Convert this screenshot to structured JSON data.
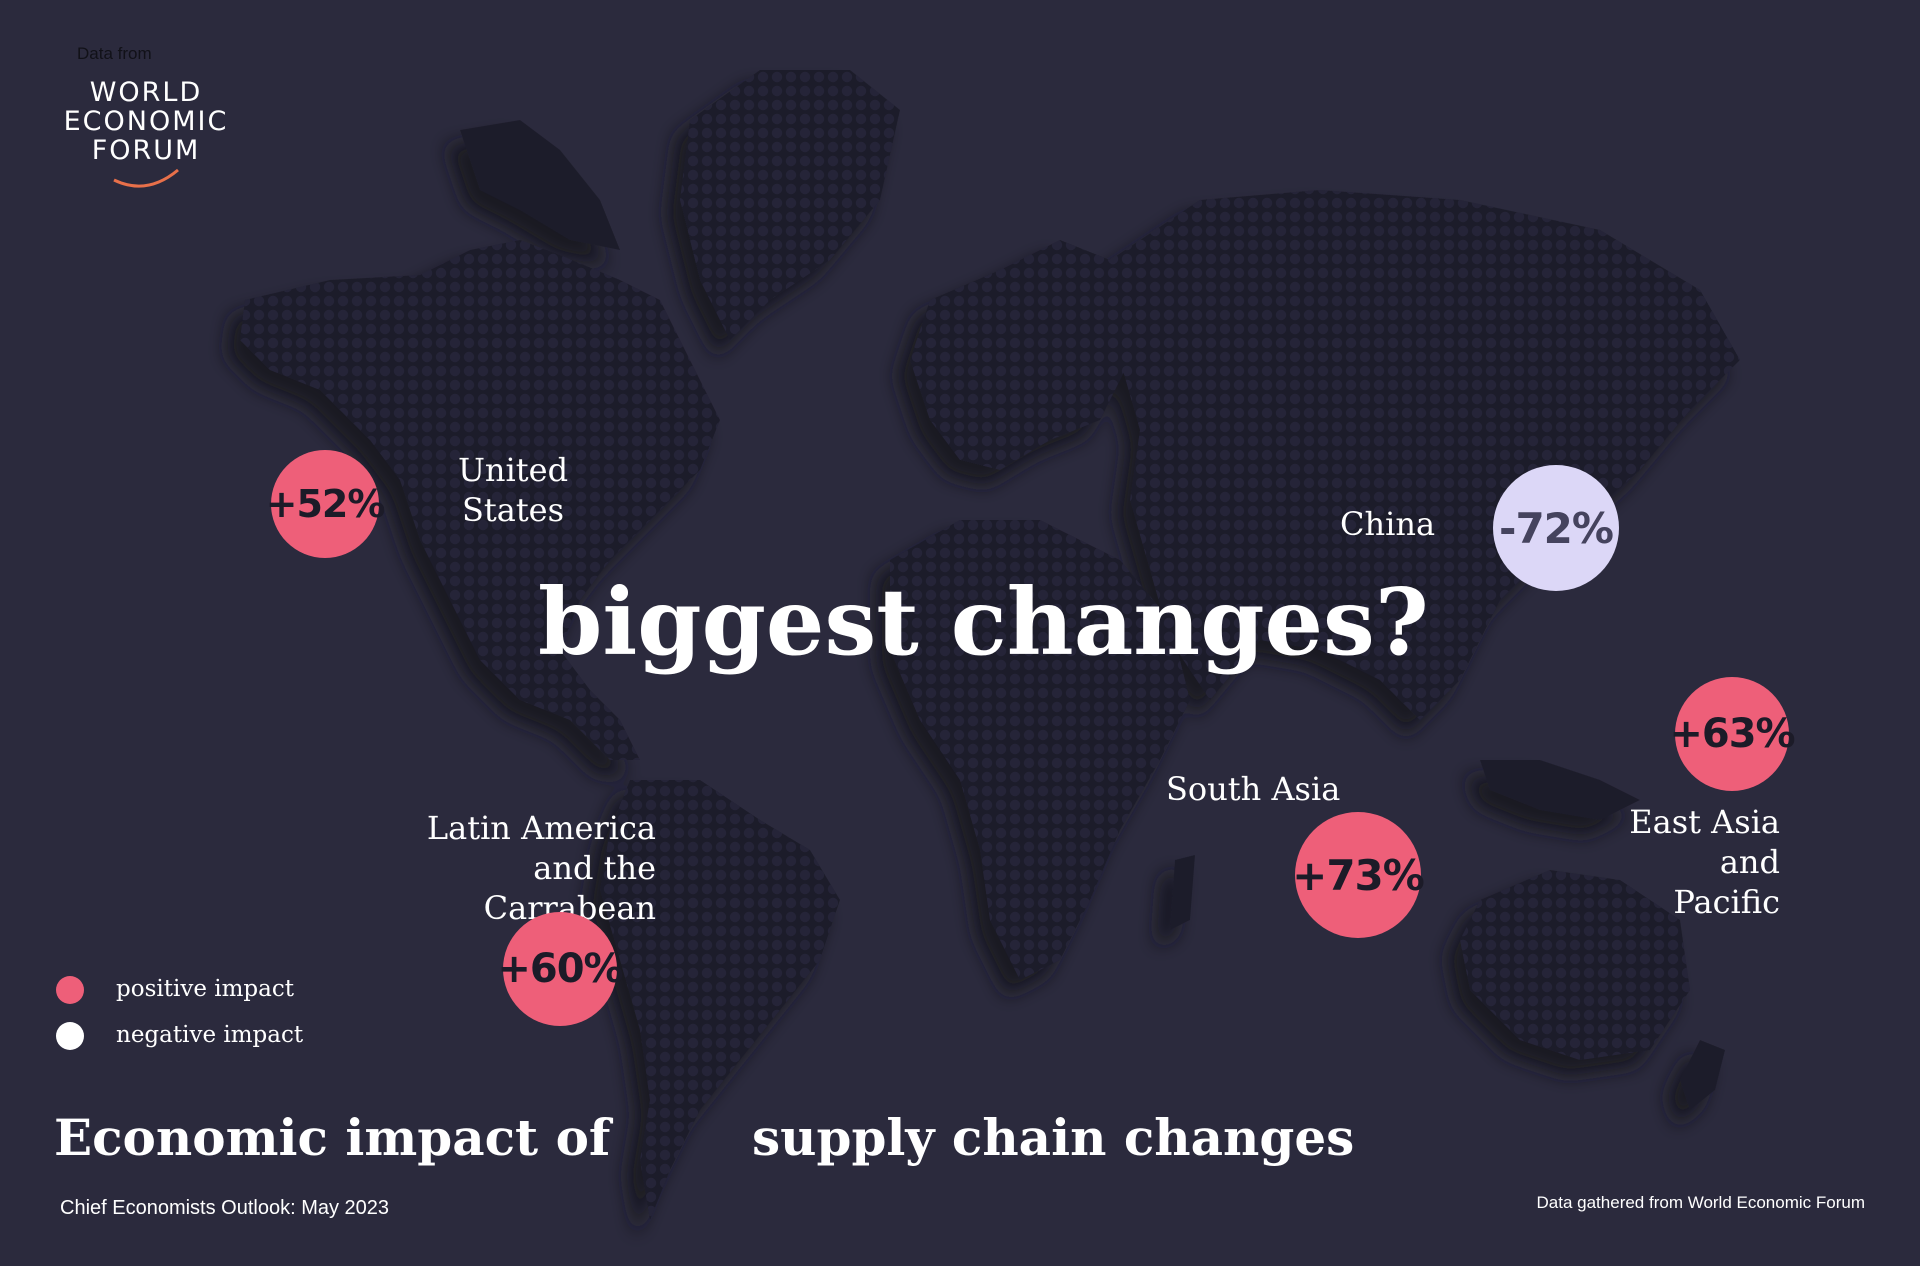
{
  "source_top": "Data from",
  "logo": {
    "lines": [
      "WORLD",
      "ECONOMIC",
      "FORUM"
    ]
  },
  "headline": "biggest changes?",
  "title": {
    "part1": "Economic impact of",
    "part2": "supply chain changes"
  },
  "regions": [
    {
      "label": "United States",
      "value": "+52%",
      "impact": "positive"
    },
    {
      "label": "China",
      "value": "-72%",
      "impact": "negative"
    },
    {
      "label": "South Asia",
      "value": "+73%",
      "impact": "positive"
    },
    {
      "label": "East Asia and Pacific",
      "value": "+63%",
      "impact": "positive"
    },
    {
      "label": "Latin America and the Carrabean",
      "value": "+60%",
      "impact": "positive"
    }
  ],
  "legend": [
    {
      "label": "positive impact",
      "color": "#ee5f79"
    },
    {
      "label": "negative impact",
      "color": "#ffffff"
    }
  ],
  "footer": {
    "left": "Chief Economists Outlook: May 2023",
    "right": "Data gathered from World Economic Forum"
  },
  "colors": {
    "background": "#2b2a3d",
    "land": "#1f1e2c",
    "positive": "#ee5f79",
    "negative": "#dcd7f7",
    "logo_arc": "#e8704a"
  }
}
